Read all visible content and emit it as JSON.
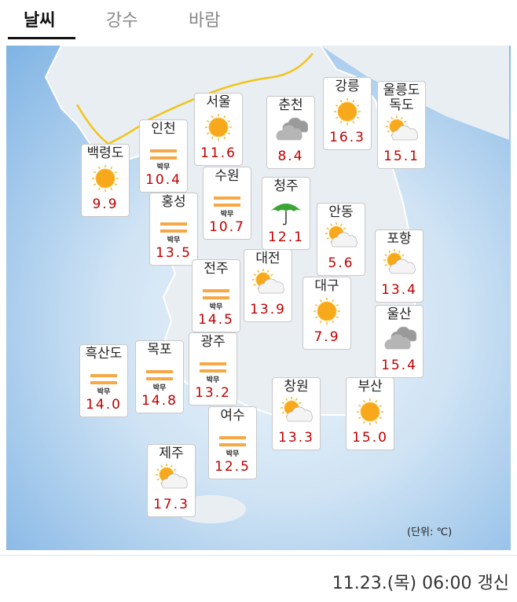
{
  "tabs": [
    "날씨",
    "강수",
    "바람"
  ],
  "cities": [
    {
      "name": "백령도",
      "icon": "sun",
      "temp": "9.9"
    },
    {
      "name": "인천",
      "icon": "haze",
      "label": "박무",
      "temp": "10.4"
    },
    {
      "name": "서울",
      "icon": "sun",
      "temp": "11.6"
    },
    {
      "name": "춘천",
      "icon": "cloud",
      "temp": "8.4"
    },
    {
      "name": "강릉",
      "icon": "sun",
      "temp": "16.3"
    },
    {
      "name": "울릉도 독도",
      "icon": "partly",
      "temp": "15.1"
    },
    {
      "name": "수원",
      "icon": "haze",
      "label": "박무",
      "temp": "10.7"
    },
    {
      "name": "청주",
      "icon": "rain",
      "temp": "12.1"
    },
    {
      "name": "홍성",
      "icon": "haze",
      "label": "박무",
      "temp": "13.5"
    },
    {
      "name": "안동",
      "icon": "partly",
      "temp": "5.6"
    },
    {
      "name": "포항",
      "icon": "partly",
      "temp": "13.4"
    },
    {
      "name": "전주",
      "icon": "haze",
      "label": "박무",
      "temp": "14.5"
    },
    {
      "name": "대전",
      "icon": "partly",
      "temp": "13.9"
    },
    {
      "name": "대구",
      "icon": "sun",
      "temp": "7.9"
    },
    {
      "name": "울산",
      "icon": "cloud",
      "temp": "15.4"
    },
    {
      "name": "흑산도",
      "icon": "haze",
      "label": "박무",
      "temp": "14.0"
    },
    {
      "name": "목포",
      "icon": "haze",
      "label": "박무",
      "temp": "14.8"
    },
    {
      "name": "광주",
      "icon": "haze",
      "label": "박무",
      "temp": "13.2"
    },
    {
      "name": "창원",
      "icon": "partly",
      "temp": "13.3"
    },
    {
      "name": "부산",
      "icon": "sun",
      "temp": "15.0"
    },
    {
      "name": "여수",
      "icon": "haze",
      "label": "박무",
      "temp": "12.5"
    },
    {
      "name": "제주",
      "icon": "partly",
      "temp": "17.3"
    }
  ],
  "unit_note": "(단위: ℃)",
  "updated": "11.23.(목) 06:00 갱신"
}
